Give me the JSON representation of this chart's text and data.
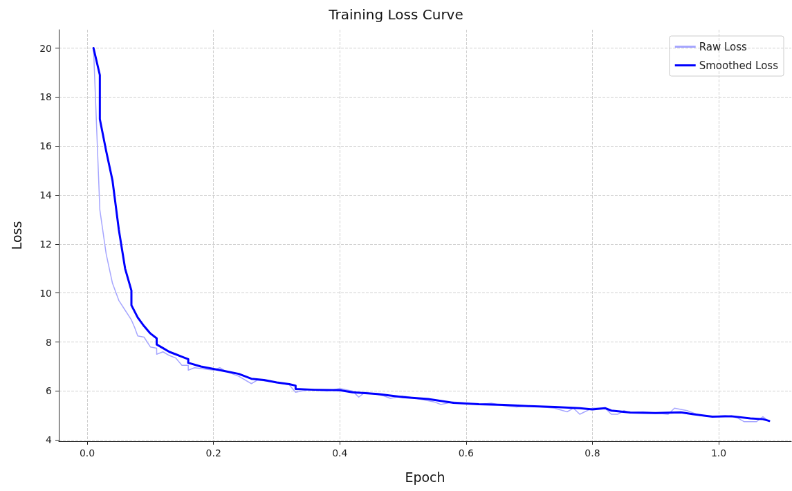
{
  "chart_data": {
    "type": "line",
    "title": "Training Loss Curve",
    "xlabel": "Epoch",
    "ylabel": "Loss",
    "xlim": [
      -0.045,
      1.115
    ],
    "ylim": [
      3.95,
      20.75
    ],
    "xticks": [
      {
        "value": 0,
        "label": "0.0"
      },
      0.2,
      0.4,
      0.6,
      0.8,
      {
        "value": 1,
        "label": "1.0"
      }
    ],
    "yticks": [
      4,
      6,
      8,
      10,
      12,
      14,
      16,
      18,
      20
    ],
    "grid": true,
    "legend": "top right",
    "marker": "none",
    "line_style": "solid",
    "series": [
      {
        "name": "Raw Loss",
        "color": "#a6a6ff",
        "x": [
          0.01,
          0.02,
          0.03,
          0.04,
          0.05,
          0.06,
          0.07,
          0.075,
          0.08,
          0.09,
          0.1,
          0.11,
          0.11,
          0.12,
          0.13,
          0.14,
          0.15,
          0.16,
          0.16,
          0.17,
          0.2,
          0.21,
          0.22,
          0.24,
          0.26,
          0.27,
          0.3,
          0.32,
          0.33,
          0.35,
          0.38,
          0.4,
          0.42,
          0.43,
          0.44,
          0.47,
          0.48,
          0.5,
          0.53,
          0.55,
          0.56,
          0.58,
          0.6,
          0.62,
          0.64,
          0.66,
          0.68,
          0.7,
          0.72,
          0.74,
          0.76,
          0.77,
          0.78,
          0.8,
          0.82,
          0.83,
          0.84,
          0.85,
          0.86,
          0.88,
          0.9,
          0.92,
          0.93,
          0.95,
          0.97,
          0.99,
          1.01,
          1.03,
          1.04,
          1.06,
          1.07,
          1.08
        ],
        "values": [
          20,
          13.4,
          11.6,
          10.4,
          9.7,
          9.3,
          8.9,
          8.6,
          8.25,
          8.2,
          7.8,
          7.75,
          7.5,
          7.6,
          7.45,
          7.35,
          7.05,
          7.05,
          6.85,
          6.95,
          6.85,
          6.95,
          6.8,
          6.6,
          6.3,
          6.45,
          6.35,
          6.25,
          5.95,
          6.05,
          6,
          6.1,
          6,
          5.75,
          5.95,
          5.8,
          5.7,
          5.8,
          5.65,
          5.55,
          5.45,
          5.55,
          5.5,
          5.45,
          5.5,
          5.4,
          5.35,
          5.4,
          5.35,
          5.3,
          5.15,
          5.3,
          5.05,
          5.3,
          5.3,
          5.05,
          5.05,
          5.2,
          5.1,
          5.15,
          5.1,
          5.05,
          5.3,
          5.2,
          5,
          4.95,
          5,
          4.9,
          4.75,
          4.75,
          4.95,
          4.75
        ]
      },
      {
        "name": "Smoothed Loss",
        "color": "#0000ff",
        "x": [
          0.01,
          0.02,
          0.02,
          0.03,
          0.04,
          0.05,
          0.06,
          0.07,
          0.07,
          0.08,
          0.09,
          0.1,
          0.11,
          0.11,
          0.12,
          0.13,
          0.14,
          0.15,
          0.16,
          0.16,
          0.18,
          0.2,
          0.22,
          0.24,
          0.26,
          0.28,
          0.3,
          0.32,
          0.33,
          0.33,
          0.36,
          0.4,
          0.42,
          0.46,
          0.5,
          0.54,
          0.58,
          0.62,
          0.66,
          0.7,
          0.74,
          0.78,
          0.8,
          0.82,
          0.83,
          0.86,
          0.9,
          0.94,
          0.96,
          0.99,
          1.02,
          1.05,
          1.07,
          1.08
        ],
        "values": [
          20,
          18.9,
          17.1,
          15.8,
          14.6,
          12.6,
          11,
          10.1,
          9.5,
          9,
          8.65,
          8.35,
          8.15,
          7.9,
          7.75,
          7.6,
          7.5,
          7.4,
          7.3,
          7.15,
          7,
          6.9,
          6.8,
          6.7,
          6.5,
          6.45,
          6.35,
          6.28,
          6.22,
          6.08,
          6.05,
          6.03,
          5.95,
          5.88,
          5.75,
          5.67,
          5.52,
          5.46,
          5.43,
          5.38,
          5.35,
          5.3,
          5.25,
          5.3,
          5.2,
          5.12,
          5.1,
          5.13,
          5.05,
          4.95,
          4.97,
          4.88,
          4.85,
          4.78
        ]
      }
    ]
  }
}
